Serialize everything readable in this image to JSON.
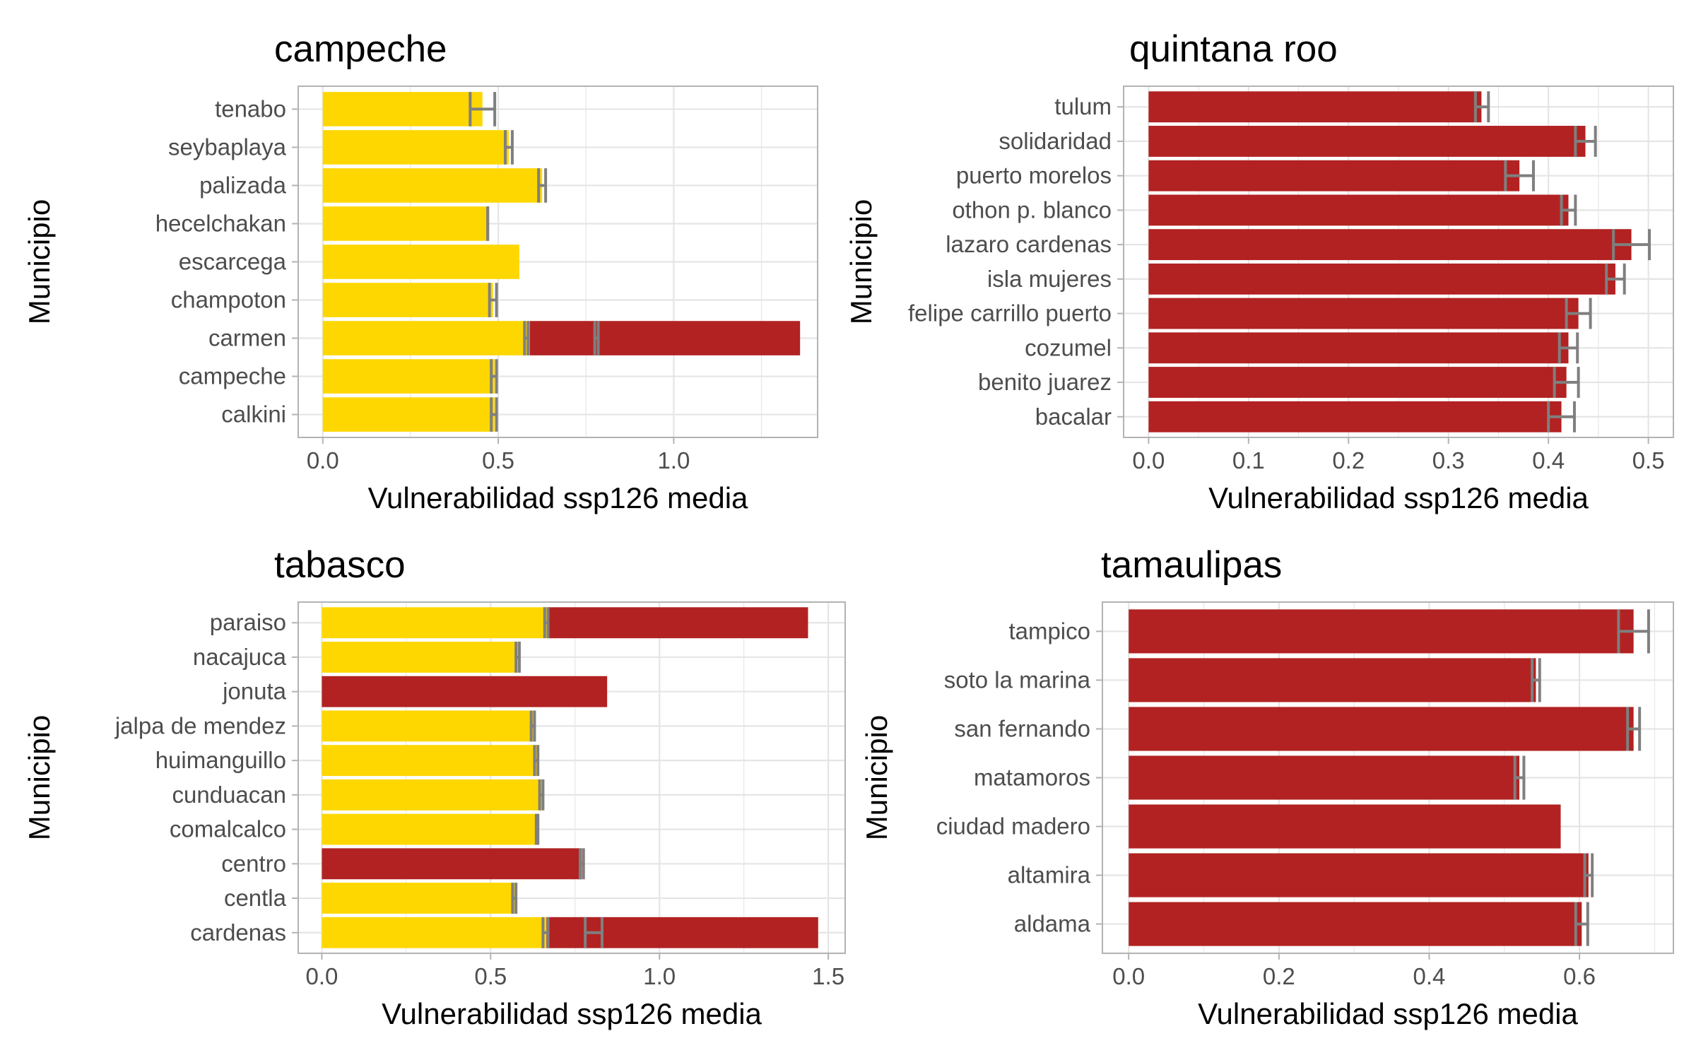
{
  "colors": {
    "bar_yellow": "#FFD700",
    "bar_red": "#B22222",
    "errorbar": "#7F7F7F",
    "grid": "#E5E5E5",
    "panel_border": "#B3B3B3",
    "text": "#000000",
    "tick_text": "#4D4D4D"
  },
  "chart_data": [
    {
      "type": "bar",
      "orientation": "horizontal",
      "stacked": true,
      "title": "campeche",
      "xlabel": "Vulnerabilidad ssp126 media",
      "ylabel": "Municipio",
      "xlim": [
        -0.07,
        1.41
      ],
      "xticks": [
        0.0,
        0.5,
        1.0
      ],
      "xtick_labels": [
        "0.0",
        "0.5",
        "1.0"
      ],
      "grid": true,
      "categories": [
        "tenabo",
        "seybaplaya",
        "palizada",
        "hecelchakan",
        "escarcega",
        "champoton",
        "carmen",
        "campeche",
        "calkini"
      ],
      "series": [
        {
          "color": "bar_yellow",
          "values": [
            0.455,
            0.53,
            0.625,
            0.47,
            0.56,
            0.485,
            0.59,
            0.49,
            0.49
          ],
          "err_low": [
            0.42,
            0.52,
            0.615,
            0.47,
            null,
            0.475,
            0.575,
            0.48,
            0.48
          ],
          "err_high": [
            0.49,
            0.54,
            0.635,
            0.47,
            null,
            0.495,
            0.585,
            0.495,
            0.495
          ]
        },
        {
          "color": "bar_red",
          "values": [
            0,
            0,
            0,
            0,
            0,
            0,
            0.77,
            0,
            0
          ],
          "err_low": [
            null,
            null,
            null,
            null,
            null,
            null,
            0.775,
            null,
            null
          ],
          "err_high": [
            null,
            null,
            null,
            null,
            null,
            null,
            0.785,
            null,
            null
          ]
        }
      ]
    },
    {
      "type": "bar",
      "orientation": "horizontal",
      "stacked": true,
      "title": "quintana roo",
      "xlabel": "Vulnerabilidad ssp126 media",
      "ylabel": "Municipio",
      "xlim": [
        -0.025,
        0.525
      ],
      "xticks": [
        0.0,
        0.1,
        0.2,
        0.3,
        0.4,
        0.5
      ],
      "xtick_labels": [
        "0.0",
        "0.1",
        "0.2",
        "0.3",
        "0.4",
        "0.5"
      ],
      "grid": true,
      "categories": [
        "tulum",
        "solidaridad",
        "puerto morelos",
        "othon p. blanco",
        "lazaro cardenas",
        "isla mujeres",
        "felipe carrillo puerto",
        "cozumel",
        "benito juarez",
        "bacalar"
      ],
      "series": [
        {
          "color": "bar_red",
          "values": [
            0.333,
            0.437,
            0.371,
            0.42,
            0.483,
            0.467,
            0.43,
            0.42,
            0.418,
            0.413
          ],
          "err_low": [
            0.327,
            0.427,
            0.357,
            0.413,
            0.465,
            0.458,
            0.418,
            0.411,
            0.406,
            0.4
          ],
          "err_high": [
            0.34,
            0.447,
            0.385,
            0.427,
            0.501,
            0.476,
            0.442,
            0.429,
            0.43,
            0.426
          ]
        }
      ]
    },
    {
      "type": "bar",
      "orientation": "horizontal",
      "stacked": true,
      "title": "tabasco",
      "xlabel": "Vulnerabilidad ssp126 media",
      "ylabel": "Municipio",
      "xlim": [
        -0.07,
        1.55
      ],
      "xticks": [
        0.0,
        0.5,
        1.0,
        1.5
      ],
      "xtick_labels": [
        "0.0",
        "0.5",
        "1.0",
        "1.5"
      ],
      "grid": true,
      "categories": [
        "paraiso",
        "nacajuca",
        "jonuta",
        "jalpa de mendez",
        "huimanguillo",
        "cunduacan",
        "comalcalco",
        "centro",
        "centla",
        "cardenas"
      ],
      "series": [
        {
          "color": "bar_yellow",
          "values": [
            0.67,
            0.585,
            0,
            0.63,
            0.64,
            0.655,
            0.64,
            0,
            0.575,
            0.665
          ],
          "err_low": [
            0.66,
            0.575,
            null,
            0.62,
            0.63,
            0.645,
            0.635,
            null,
            0.565,
            0.655
          ],
          "err_high": [
            0.67,
            0.585,
            null,
            0.63,
            0.64,
            0.655,
            0.64,
            null,
            0.575,
            0.67
          ]
        },
        {
          "color": "bar_red",
          "values": [
            0.77,
            0,
            0.845,
            0,
            0,
            0,
            0,
            0.77,
            0,
            0.805
          ],
          "err_low": [
            null,
            null,
            null,
            null,
            null,
            null,
            null,
            0.765,
            null,
            0.78
          ],
          "err_high": [
            null,
            null,
            null,
            null,
            null,
            null,
            null,
            0.775,
            null,
            0.83
          ]
        }
      ]
    },
    {
      "type": "bar",
      "orientation": "horizontal",
      "stacked": true,
      "title": "tamaulipas",
      "xlabel": "Vulnerabilidad ssp126 media",
      "ylabel": "Municipio",
      "xlim": [
        -0.035,
        0.725
      ],
      "xticks": [
        0.0,
        0.2,
        0.4,
        0.6
      ],
      "xtick_labels": [
        "0.0",
        "0.2",
        "0.4",
        "0.6"
      ],
      "grid": true,
      "categories": [
        "tampico",
        "soto la marina",
        "san fernando",
        "matamoros",
        "ciudad madero",
        "altamira",
        "aldama"
      ],
      "series": [
        {
          "color": "bar_red",
          "values": [
            0.672,
            0.542,
            0.672,
            0.52,
            0.575,
            0.612,
            0.603
          ],
          "err_low": [
            0.652,
            0.537,
            0.664,
            0.514,
            null,
            0.607,
            0.595
          ],
          "err_high": [
            0.692,
            0.547,
            0.68,
            0.526,
            null,
            0.617,
            0.611
          ]
        }
      ]
    }
  ]
}
